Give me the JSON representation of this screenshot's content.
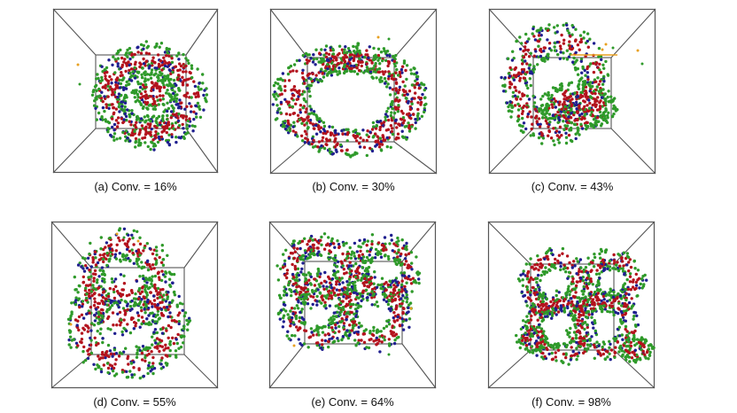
{
  "figure": {
    "panels": [
      {
        "id": "a",
        "caption": "(a) Conv. = 16%"
      },
      {
        "id": "b",
        "caption": "(b) Conv. = 30%"
      },
      {
        "id": "c",
        "caption": "(c) Conv. = 43%"
      },
      {
        "id": "d",
        "caption": "(d) Conv. = 55%"
      },
      {
        "id": "e",
        "caption": "(e) Conv. = 64%"
      },
      {
        "id": "f",
        "caption": "(f) Conv. = 98%"
      }
    ],
    "colors": {
      "box_edge": "#555555",
      "bead_green": "#2f9a2a",
      "bead_red": "#b3121d",
      "bead_blue": "#1f1f8f",
      "bead_orange": "#e8a020"
    }
  }
}
